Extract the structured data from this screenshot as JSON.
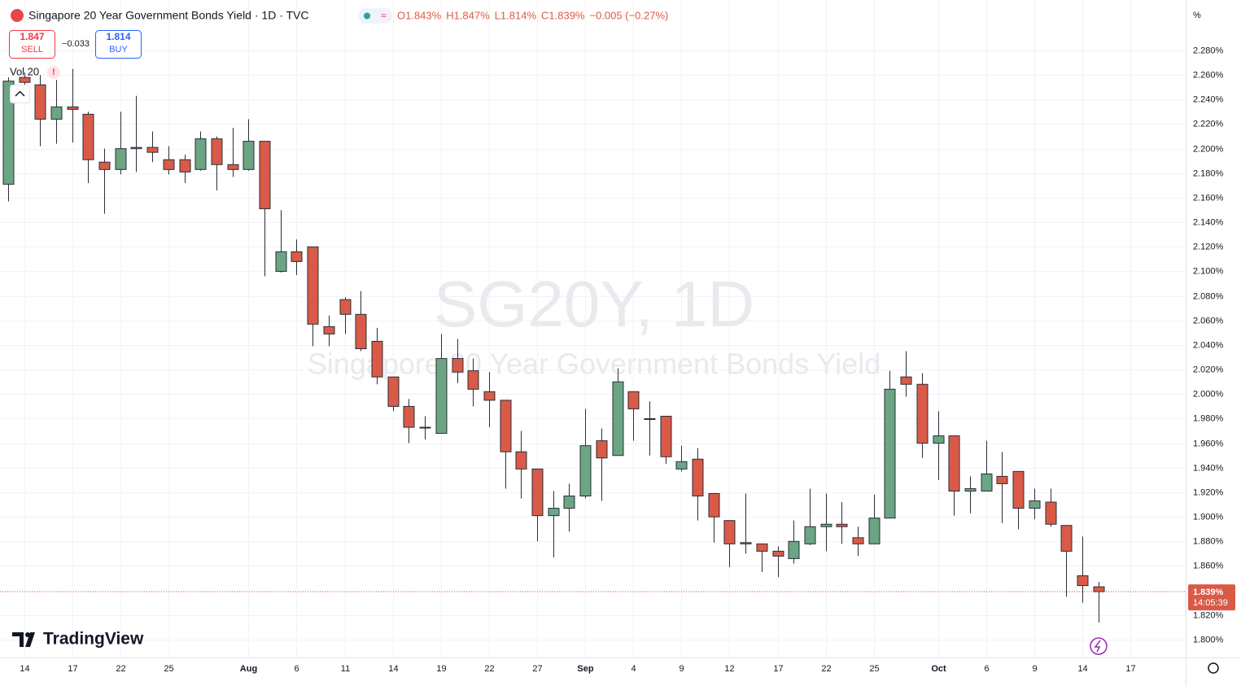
{
  "chart_data": {
    "type": "candlestick",
    "title": "Singapore 20 Year Government Bonds Yield · 1D · TVC",
    "legend_values": [
      "O1.843%",
      "H1.847%",
      "L1.814%",
      "C1.839%",
      "−0.005 (−0.27%)"
    ],
    "sell": {
      "price": "1.847",
      "label": "SELL"
    },
    "spread": "−0.033",
    "buy": {
      "price": "1.814",
      "label": "BUY"
    },
    "volume_label": "Vol 20",
    "watermark": "SG20Y, 1D",
    "watermark_subtitle": "Singapore 20 Year Government Bonds Yield",
    "brand": "TradingView",
    "y_unit": "%",
    "last_price": {
      "value": 1.839,
      "label": "1.839%"
    },
    "countdown": "14:05:39",
    "up_color": "#6aa584",
    "down_color": "#d95b47",
    "grid": true,
    "open": [
      2.171,
      2.258,
      2.252,
      2.224,
      2.234,
      2.228,
      2.189,
      2.183,
      2.2,
      2.201,
      2.191,
      2.191,
      2.183,
      2.208,
      2.187,
      2.183,
      2.206,
      2.1,
      2.116,
      2.12,
      2.055,
      2.077,
      2.065,
      2.043,
      2.014,
      1.99,
      1.973,
      1.968,
      2.029,
      2.019,
      2.002,
      1.995,
      1.953,
      1.939,
      1.901,
      1.907,
      1.917,
      1.962,
      1.95,
      2.002,
      1.98,
      1.982,
      1.939,
      1.947,
      1.919,
      1.897,
      1.879,
      1.878,
      1.872,
      1.866,
      1.878,
      1.892,
      1.894,
      1.883,
      1.878,
      1.899,
      2.014,
      2.008,
      1.96,
      1.966,
      1.921,
      1.921,
      1.933,
      1.937,
      1.907,
      1.912,
      1.893,
      1.852,
      1.843
    ],
    "high": [
      2.258,
      2.262,
      2.26,
      2.256,
      2.265,
      2.23,
      2.2,
      2.23,
      2.243,
      2.214,
      2.202,
      2.195,
      2.214,
      2.21,
      2.217,
      2.224,
      2.206,
      2.15,
      2.126,
      2.12,
      2.064,
      2.079,
      2.084,
      2.054,
      2.014,
      1.996,
      1.982,
      2.049,
      2.045,
      2.029,
      2.018,
      1.995,
      1.97,
      1.939,
      1.921,
      1.927,
      1.988,
      1.972,
      2.021,
      2.002,
      1.994,
      1.982,
      1.958,
      1.956,
      1.919,
      1.897,
      1.919,
      1.878,
      1.876,
      1.897,
      1.923,
      1.919,
      1.912,
      1.892,
      1.918,
      2.019,
      2.035,
      2.017,
      1.986,
      1.966,
      1.933,
      1.962,
      1.953,
      1.937,
      1.923,
      1.923,
      1.893,
      1.884,
      1.847
    ],
    "low": [
      2.157,
      2.25,
      2.202,
      2.204,
      2.205,
      2.172,
      2.147,
      2.179,
      2.181,
      2.189,
      2.179,
      2.172,
      2.182,
      2.166,
      2.177,
      2.182,
      2.096,
      2.099,
      2.097,
      2.039,
      2.039,
      2.049,
      2.035,
      2.008,
      1.986,
      1.96,
      1.963,
      1.968,
      2.009,
      1.99,
      1.973,
      1.923,
      1.915,
      1.88,
      1.867,
      1.888,
      1.915,
      1.913,
      1.95,
      1.962,
      1.95,
      1.943,
      1.937,
      1.897,
      1.879,
      1.859,
      1.87,
      1.855,
      1.851,
      1.862,
      1.877,
      1.872,
      1.878,
      1.868,
      1.878,
      1.899,
      1.998,
      1.948,
      1.93,
      1.901,
      1.903,
      1.921,
      1.895,
      1.89,
      1.898,
      1.892,
      1.835,
      1.83,
      1.814
    ],
    "close": [
      2.255,
      2.254,
      2.224,
      2.234,
      2.232,
      2.191,
      2.183,
      2.2,
      2.201,
      2.197,
      2.183,
      2.181,
      2.208,
      2.187,
      2.183,
      2.206,
      2.151,
      2.116,
      2.108,
      2.057,
      2.049,
      2.065,
      2.037,
      2.014,
      1.99,
      1.973,
      1.973,
      2.029,
      2.018,
      2.004,
      1.995,
      1.953,
      1.939,
      1.901,
      1.907,
      1.917,
      1.958,
      1.948,
      2.01,
      1.988,
      1.98,
      1.949,
      1.945,
      1.917,
      1.9,
      1.878,
      1.878,
      1.872,
      1.868,
      1.88,
      1.892,
      1.894,
      1.892,
      1.878,
      1.899,
      2.004,
      2.008,
      1.96,
      1.966,
      1.921,
      1.923,
      1.935,
      1.927,
      1.907,
      1.913,
      1.894,
      1.872,
      1.844,
      1.839
    ],
    "xlim": [
      -0.5,
      73.45
    ],
    "xticks": [
      {
        "value": 1,
        "label": "14"
      },
      {
        "value": 4,
        "label": "17"
      },
      {
        "value": 7,
        "label": "22"
      },
      {
        "value": 10,
        "label": "25"
      },
      {
        "value": 15,
        "label": "Aug"
      },
      {
        "value": 18,
        "label": "6"
      },
      {
        "value": 21,
        "label": "11"
      },
      {
        "value": 24,
        "label": "14"
      },
      {
        "value": 27,
        "label": "19"
      },
      {
        "value": 30,
        "label": "22"
      },
      {
        "value": 33,
        "label": "27"
      },
      {
        "value": 36,
        "label": "Sep"
      },
      {
        "value": 39,
        "label": "4"
      },
      {
        "value": 42,
        "label": "9"
      },
      {
        "value": 45,
        "label": "12"
      },
      {
        "value": 48,
        "label": "17"
      },
      {
        "value": 51,
        "label": "22"
      },
      {
        "value": 54,
        "label": "25"
      },
      {
        "value": 58,
        "label": "Oct"
      },
      {
        "value": 61,
        "label": "6"
      },
      {
        "value": 64,
        "label": "9"
      },
      {
        "value": 67,
        "label": "14"
      },
      {
        "value": 70,
        "label": "17"
      }
    ],
    "ylim": [
      1.7854,
      2.3211
    ],
    "yticks": [
      {
        "value": 1.8,
        "label": "1.800%"
      },
      {
        "value": 1.82,
        "label": "1.820%"
      },
      {
        "value": 1.84,
        "label": "1.840%"
      },
      {
        "value": 1.86,
        "label": "1.860%"
      },
      {
        "value": 1.88,
        "label": "1.880%"
      },
      {
        "value": 1.9,
        "label": "1.900%"
      },
      {
        "value": 1.92,
        "label": "1.920%"
      },
      {
        "value": 1.94,
        "label": "1.940%"
      },
      {
        "value": 1.96,
        "label": "1.960%"
      },
      {
        "value": 1.98,
        "label": "1.980%"
      },
      {
        "value": 2.0,
        "label": "2.000%"
      },
      {
        "value": 2.02,
        "label": "2.020%"
      },
      {
        "value": 2.04,
        "label": "2.040%"
      },
      {
        "value": 2.06,
        "label": "2.060%"
      },
      {
        "value": 2.08,
        "label": "2.080%"
      },
      {
        "value": 2.1,
        "label": "2.100%"
      },
      {
        "value": 2.12,
        "label": "2.120%"
      },
      {
        "value": 2.14,
        "label": "2.140%"
      },
      {
        "value": 2.16,
        "label": "2.160%"
      },
      {
        "value": 2.18,
        "label": "2.180%"
      },
      {
        "value": 2.2,
        "label": "2.200%"
      },
      {
        "value": 2.22,
        "label": "2.220%"
      },
      {
        "value": 2.24,
        "label": "2.240%"
      },
      {
        "value": 2.26,
        "label": "2.260%"
      },
      {
        "value": 2.28,
        "label": "2.280%"
      }
    ]
  }
}
